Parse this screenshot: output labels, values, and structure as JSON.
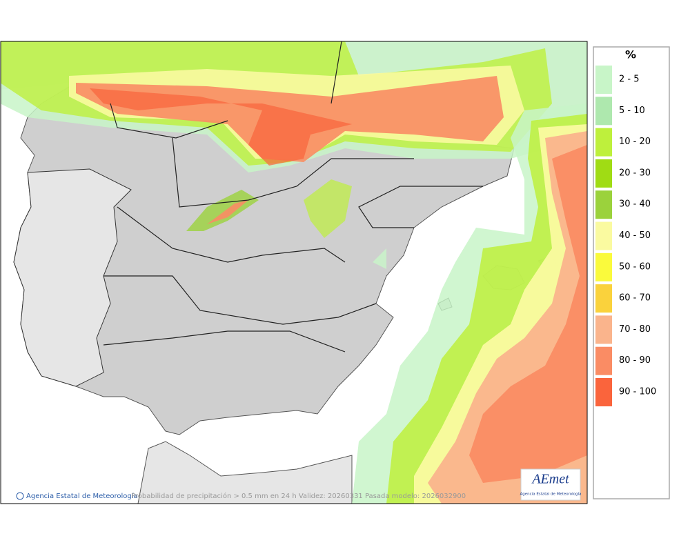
{
  "legend": {
    "title": "%",
    "items": [
      {
        "label": "2 - 5",
        "color": "#c8f5c8"
      },
      {
        "label": "5 - 10",
        "color": "#aee8ae"
      },
      {
        "label": "10 - 20",
        "color": "#bef03c"
      },
      {
        "label": "20 - 30",
        "color": "#a0dc14"
      },
      {
        "label": "30 - 40",
        "color": "#9bd23c"
      },
      {
        "label": "40 - 50",
        "color": "#fafaa0"
      },
      {
        "label": "50 - 60",
        "color": "#fafa3c"
      },
      {
        "label": "60 - 70",
        "color": "#fad23c"
      },
      {
        "label": "70 - 80",
        "color": "#fab48c"
      },
      {
        "label": "80 - 90",
        "color": "#fa8c64"
      },
      {
        "label": "90 - 100",
        "color": "#fa643c"
      }
    ]
  },
  "footer": {
    "agency": "Agencia Estatal de Meteorología",
    "caption": "Probabilidad de precipitación > 0.5 mm en 24 h Validez: 20260331 Pasada modelo: 2026032900"
  },
  "logo": {
    "mark": "AEmet",
    "subtitle": "Agencia Estatal de Meteorología"
  }
}
